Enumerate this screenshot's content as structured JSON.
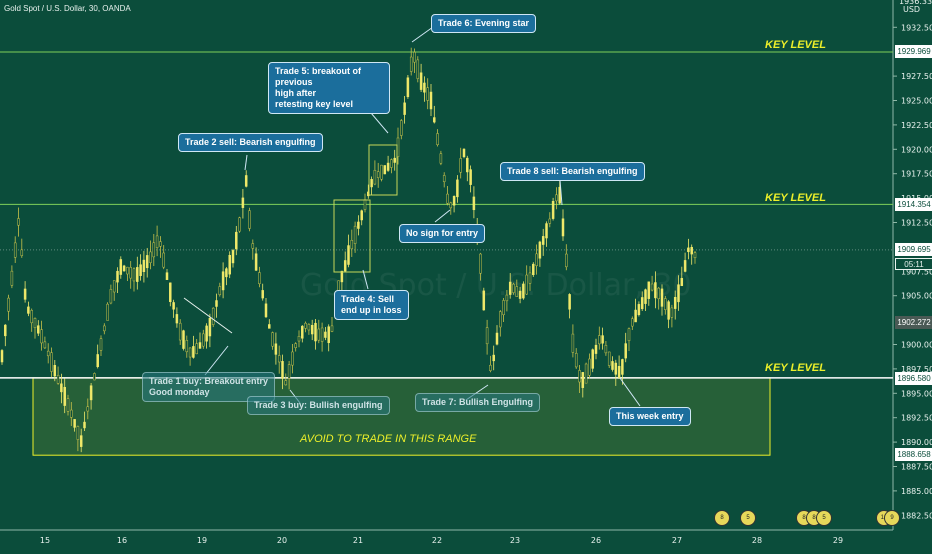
{
  "header": {
    "symbol_title": "Gold Spot / U.S. Dollar, 30, OANDA"
  },
  "price_axis": {
    "currency": "USD",
    "top_clip_label": "1936.33",
    "ticks": [
      "1932.50",
      "1927.50",
      "1925.00",
      "1922.50",
      "1920.00",
      "1917.50",
      "1912.50",
      "1905.00",
      "1900.00",
      "1897.50",
      "1895.00",
      "1892.50",
      "1890.00",
      "1887.50",
      "1885.00",
      "1882.50"
    ],
    "partial_ticks": [
      "1915.00",
      "1907.50"
    ],
    "labels": [
      {
        "key": "kl_top",
        "text": "1929.969",
        "bg": "#ffffff",
        "fg": "#0b4d3b"
      },
      {
        "key": "kl_mid",
        "text": "1914.354",
        "bg": "#ffffff",
        "fg": "#0b4d3b"
      },
      {
        "key": "last",
        "text": "1909.695",
        "bg": "#ffffff",
        "fg": "#0b4d3b"
      },
      {
        "key": "hl",
        "text": "1902.272",
        "bg": "#4a5a55",
        "fg": "#ffffff"
      },
      {
        "key": "kl_low",
        "text": "1896.580",
        "bg": "#ffffff",
        "fg": "#0b4d3b"
      },
      {
        "key": "range_low",
        "text": "1888.658",
        "bg": "#ffffff",
        "fg": "#0b4d3b"
      }
    ],
    "countdown": "05:11"
  },
  "time_axis": {
    "labels": [
      "15",
      "16",
      "19",
      "20",
      "21",
      "22",
      "23",
      "26",
      "27",
      "28",
      "29"
    ]
  },
  "key_levels": [
    {
      "label": "KEY LEVEL",
      "price": 1929.969
    },
    {
      "label": "KEY LEVEL",
      "price": 1914.354
    },
    {
      "label": "KEY LEVEL",
      "price": 1896.58
    }
  ],
  "range_box": {
    "label": "AVOID TO TRADE IN THIS RANGE",
    "top": 1896.58,
    "bottom": 1888.658
  },
  "annotations": [
    {
      "id": "t1",
      "text": "Trade 1 buy: Breakout entry\nGood monday",
      "faded": true
    },
    {
      "id": "t2",
      "text": "Trade 2 sell: Bearish engulfing",
      "faded": false
    },
    {
      "id": "t3",
      "text": "Trade 3 buy: Bullish engulfing",
      "faded": true
    },
    {
      "id": "t4",
      "text": "Trade 4: Sell\nend up in loss",
      "faded": false
    },
    {
      "id": "t5",
      "text": "Trade 5: breakout of previous\nhigh after\nretesting key level",
      "faded": false
    },
    {
      "id": "t6",
      "text": "Trade 6: Evening star",
      "faded": false
    },
    {
      "id": "nosign",
      "text": "No sign for entry",
      "faded": false
    },
    {
      "id": "t7",
      "text": "Trade 7: Bullish Engulfing",
      "faded": true
    },
    {
      "id": "t8",
      "text": "Trade 8 sell: Bearish engulfing",
      "faded": false
    },
    {
      "id": "thisweek",
      "text": "This week entry",
      "faded": false
    }
  ],
  "watermark": {
    "text": "Gold Spot / U.S. Dollar, 30"
  },
  "events": [
    "8",
    "5",
    "8",
    "8",
    "5",
    "13",
    "9"
  ],
  "colors": {
    "background": "#0b4d3b",
    "candle": "#f0e96a",
    "candle_dark": "#c9c24a",
    "key_level": "#7fd05a",
    "range": "#ecef2a",
    "annotation": "#1b6e9c"
  }
}
